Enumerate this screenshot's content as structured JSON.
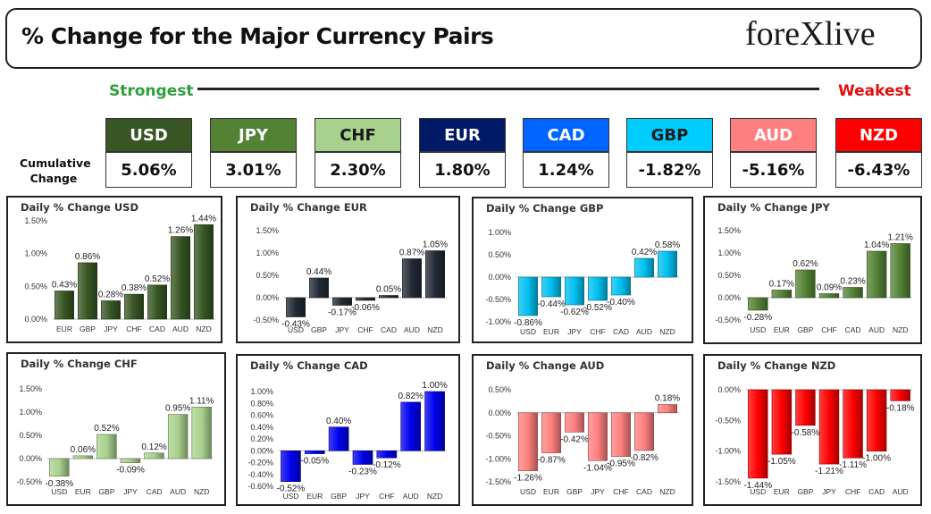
{
  "header": {
    "title": "% Change for the Major Currency Pairs",
    "logo_left": "fore",
    "logo_x": "X",
    "logo_right": "live"
  },
  "scale": {
    "strongest": "Strongest",
    "weakest": "Weakest"
  },
  "cumulative_label": "Cumulative Change",
  "tiles": [
    {
      "code": "USD",
      "value": "5.06%",
      "bg": "#375623",
      "fg": "#ffffff"
    },
    {
      "code": "JPY",
      "value": "3.01%",
      "bg": "#548235",
      "fg": "#ffffff"
    },
    {
      "code": "CHF",
      "value": "2.30%",
      "bg": "#a9d18e",
      "fg": "#1a1a1a"
    },
    {
      "code": "EUR",
      "value": "1.80%",
      "bg": "#001a66",
      "fg": "#ffffff"
    },
    {
      "code": "CAD",
      "value": "1.24%",
      "bg": "#0066ff",
      "fg": "#ffffff"
    },
    {
      "code": "GBP",
      "value": "-1.82%",
      "bg": "#00ccff",
      "fg": "#1a1a1a"
    },
    {
      "code": "AUD",
      "value": "-5.16%",
      "bg": "#ff8080",
      "fg": "#ffffff"
    },
    {
      "code": "NZD",
      "value": "-6.43%",
      "bg": "#ff0000",
      "fg": "#ffffff"
    }
  ],
  "chart_data": [
    {
      "type": "bar",
      "title": "Daily % Change USD",
      "categories": [
        "EUR",
        "GBP",
        "JPY",
        "CHF",
        "CAD",
        "AUD",
        "NZD"
      ],
      "values": [
        0.43,
        0.86,
        0.28,
        0.38,
        0.52,
        1.26,
        1.44
      ],
      "labels": [
        "0.43%",
        "0.86%",
        "0.28%",
        "0.38%",
        "0.52%",
        "1.26%",
        "1.44%"
      ],
      "yticks": [
        0.0,
        0.5,
        1.0,
        1.5
      ],
      "ytick_labels": [
        "0.00%",
        "0.50%",
        "1.00%",
        "1.50%"
      ],
      "ylim": [
        0.0,
        1.5
      ],
      "color": "#375623"
    },
    {
      "type": "bar",
      "title": "Daily % Change EUR",
      "categories": [
        "USD",
        "GBP",
        "JPY",
        "CHF",
        "CAD",
        "AUD",
        "NZD"
      ],
      "values": [
        -0.43,
        0.44,
        -0.17,
        -0.06,
        0.05,
        0.87,
        1.05
      ],
      "labels": [
        "-0.43%",
        "0.44%",
        "-0.17%",
        "-0.06%",
        "0.05%",
        "0.87%",
        "1.05%"
      ],
      "yticks": [
        -0.5,
        0.0,
        0.5,
        1.0,
        1.5
      ],
      "ytick_labels": [
        "-0.50%",
        "0.00%",
        "0.50%",
        "1.00%",
        "1.50%"
      ],
      "ylim": [
        -0.5,
        1.5
      ],
      "color": "#222a35"
    },
    {
      "type": "bar",
      "title": "Daily % Change GBP",
      "categories": [
        "USD",
        "EUR",
        "JPY",
        "CHF",
        "CAD",
        "AUD",
        "NZD"
      ],
      "values": [
        -0.86,
        -0.44,
        -0.62,
        -0.52,
        -0.4,
        0.42,
        0.58
      ],
      "labels": [
        "-0.86%",
        "-0.44%",
        "-0.62%",
        "-0.52%",
        "-0.40%",
        "0.42%",
        "0.58%"
      ],
      "yticks": [
        -1.0,
        -0.5,
        0.0,
        0.5,
        1.0
      ],
      "ytick_labels": [
        "-1.00%",
        "-0.50%",
        "0.00%",
        "0.50%",
        "1.00%"
      ],
      "ylim": [
        -1.0,
        1.0
      ],
      "color": "#00c0f0"
    },
    {
      "type": "bar",
      "title": "Daily % Change JPY",
      "categories": [
        "USD",
        "EUR",
        "GBP",
        "CHF",
        "CAD",
        "AUD",
        "NZD"
      ],
      "values": [
        -0.28,
        0.17,
        0.62,
        0.09,
        0.23,
        1.04,
        1.21
      ],
      "labels": [
        "-0.28%",
        "0.17%",
        "0.62%",
        "0.09%",
        "0.23%",
        "1.04%",
        "1.21%"
      ],
      "yticks": [
        -0.5,
        0.0,
        0.5,
        1.0,
        1.5
      ],
      "ytick_labels": [
        "-0.50%",
        "0.00%",
        "0.50%",
        "1.00%",
        "1.50%"
      ],
      "ylim": [
        -0.5,
        1.5
      ],
      "color": "#548235"
    },
    {
      "type": "bar",
      "title": "Daily % Change CHF",
      "categories": [
        "USD",
        "EUR",
        "GBP",
        "JPY",
        "CAD",
        "AUD",
        "NZD"
      ],
      "values": [
        -0.38,
        0.06,
        0.52,
        -0.09,
        0.12,
        0.95,
        1.11
      ],
      "labels": [
        "-0.38%",
        "0.06%",
        "0.52%",
        "-0.09%",
        "0.12%",
        "0.95%",
        "1.11%"
      ],
      "yticks": [
        -0.5,
        0.0,
        0.5,
        1.0,
        1.5
      ],
      "ytick_labels": [
        "-0.50%",
        "0.00%",
        "0.50%",
        "1.00%",
        "1.50%"
      ],
      "ylim": [
        -0.5,
        1.5
      ],
      "color": "#a9d18e"
    },
    {
      "type": "bar",
      "title": "Daily % Change CAD",
      "categories": [
        "USD",
        "EUR",
        "GBP",
        "JPY",
        "CHF",
        "AUD",
        "NZD"
      ],
      "values": [
        -0.52,
        -0.05,
        0.4,
        -0.23,
        -0.12,
        0.82,
        1.0
      ],
      "labels": [
        "-0.52%",
        "-0.05%",
        "0.40%",
        "-0.23%",
        "-0.12%",
        "0.82%",
        "1.00%"
      ],
      "yticks": [
        -0.6,
        -0.4,
        -0.2,
        0.0,
        0.2,
        0.4,
        0.6,
        0.8,
        1.0
      ],
      "ytick_labels": [
        "-0.60%",
        "-0.40%",
        "-0.20%",
        "0.00%",
        "0.20%",
        "0.40%",
        "0.60%",
        "0.80%",
        "1.00%"
      ],
      "ylim": [
        -0.6,
        1.0
      ],
      "color": "#0000ee"
    },
    {
      "type": "bar",
      "title": "Daily % Change AUD",
      "categories": [
        "USD",
        "EUR",
        "GBP",
        "JPY",
        "CHF",
        "CAD",
        "NZD"
      ],
      "values": [
        -1.26,
        -0.87,
        -0.42,
        -1.04,
        -0.95,
        -0.82,
        0.18
      ],
      "labels": [
        "-1.26%",
        "-0.87%",
        "-0.42%",
        "-1.04%",
        "-0.95%",
        "-0.82%",
        "0.18%"
      ],
      "yticks": [
        -1.5,
        -1.0,
        -0.5,
        0.0,
        0.5
      ],
      "ytick_labels": [
        "-1.50%",
        "-1.00%",
        "-0.50%",
        "0.00%",
        "0.50%"
      ],
      "ylim": [
        -1.5,
        0.5
      ],
      "color": "#ff8080"
    },
    {
      "type": "bar",
      "title": "Daily % Change NZD",
      "categories": [
        "USD",
        "EUR",
        "GBP",
        "JPY",
        "CHF",
        "CAD",
        "AUD"
      ],
      "values": [
        -1.44,
        -1.05,
        -0.58,
        -1.21,
        -1.11,
        -1.0,
        -0.18
      ],
      "labels": [
        "-1.44%",
        "-1.05%",
        "-0.58%",
        "-1.21%",
        "-1.11%",
        "-1.00%",
        "-0.18%"
      ],
      "yticks": [
        -1.5,
        -1.0,
        -0.5,
        0.0
      ],
      "ytick_labels": [
        "-1.50%",
        "-1.00%",
        "-0.50%",
        "0.00%"
      ],
      "ylim": [
        -1.5,
        0.0
      ],
      "color": "#ff0000"
    }
  ]
}
